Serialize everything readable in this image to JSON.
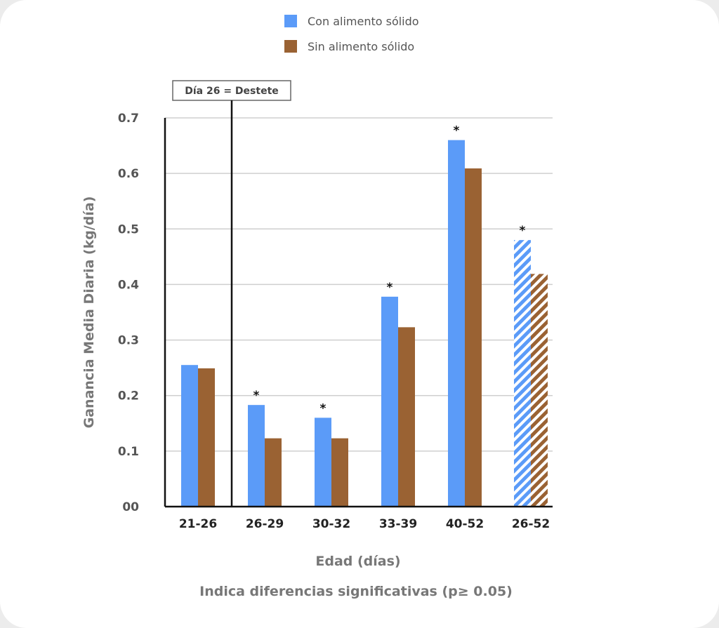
{
  "chart_data": {
    "type": "bar",
    "categories": [
      "21-26",
      "26-29",
      "30-32",
      "33-39",
      "40-52",
      "26-52"
    ],
    "series": [
      {
        "name": "Con alimento sólido",
        "values": [
          0.255,
          0.183,
          0.16,
          0.378,
          0.66,
          0.48
        ],
        "color": "#5b9bf8"
      },
      {
        "name": "Sin alimento sólido",
        "values": [
          0.249,
          0.123,
          0.123,
          0.323,
          0.609,
          0.419
        ],
        "color": "#9a6233"
      }
    ],
    "hatched_categories": [
      "26-52"
    ],
    "significant": [
      false,
      true,
      true,
      true,
      true,
      true
    ],
    "significance_marker": "*",
    "ylim": [
      0,
      0.7
    ],
    "yticks": [
      "00",
      "0.1",
      "0.2",
      "0.3",
      "0.4",
      "0.5",
      "0.6",
      "0.7"
    ],
    "xlabel": "Edad (días)",
    "ylabel": "Ganancia Media Diaria (kg/día)",
    "footnote": "Indica diferencias significativas (p≥ 0.05)",
    "annotation": "Día 26 = Destete",
    "grid": true,
    "legend_position": "top-center"
  }
}
